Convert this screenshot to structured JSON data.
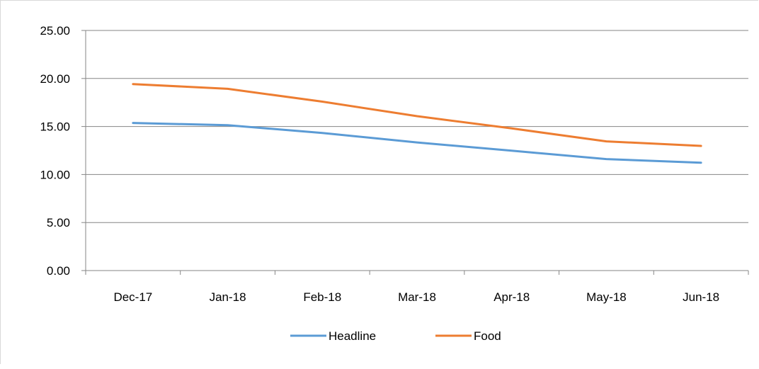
{
  "chart_data": {
    "type": "line",
    "title": "",
    "xlabel": "",
    "ylabel": "",
    "categories": [
      "Dec-17",
      "Jan-18",
      "Feb-18",
      "Mar-18",
      "Apr-18",
      "May-18",
      "Jun-18"
    ],
    "ylim": [
      0,
      25
    ],
    "y_ticks": [
      "0.00",
      "5.00",
      "10.00",
      "15.00",
      "20.00",
      "25.00"
    ],
    "grid": true,
    "legend_position": "bottom",
    "series": [
      {
        "name": "Headline",
        "color": "#5b9bd5",
        "values": [
          15.37,
          15.13,
          14.33,
          13.34,
          12.48,
          11.61,
          11.23
        ]
      },
      {
        "name": "Food",
        "color": "#ed7d31",
        "values": [
          19.42,
          18.92,
          17.59,
          16.08,
          14.8,
          13.45,
          12.98
        ]
      }
    ]
  }
}
